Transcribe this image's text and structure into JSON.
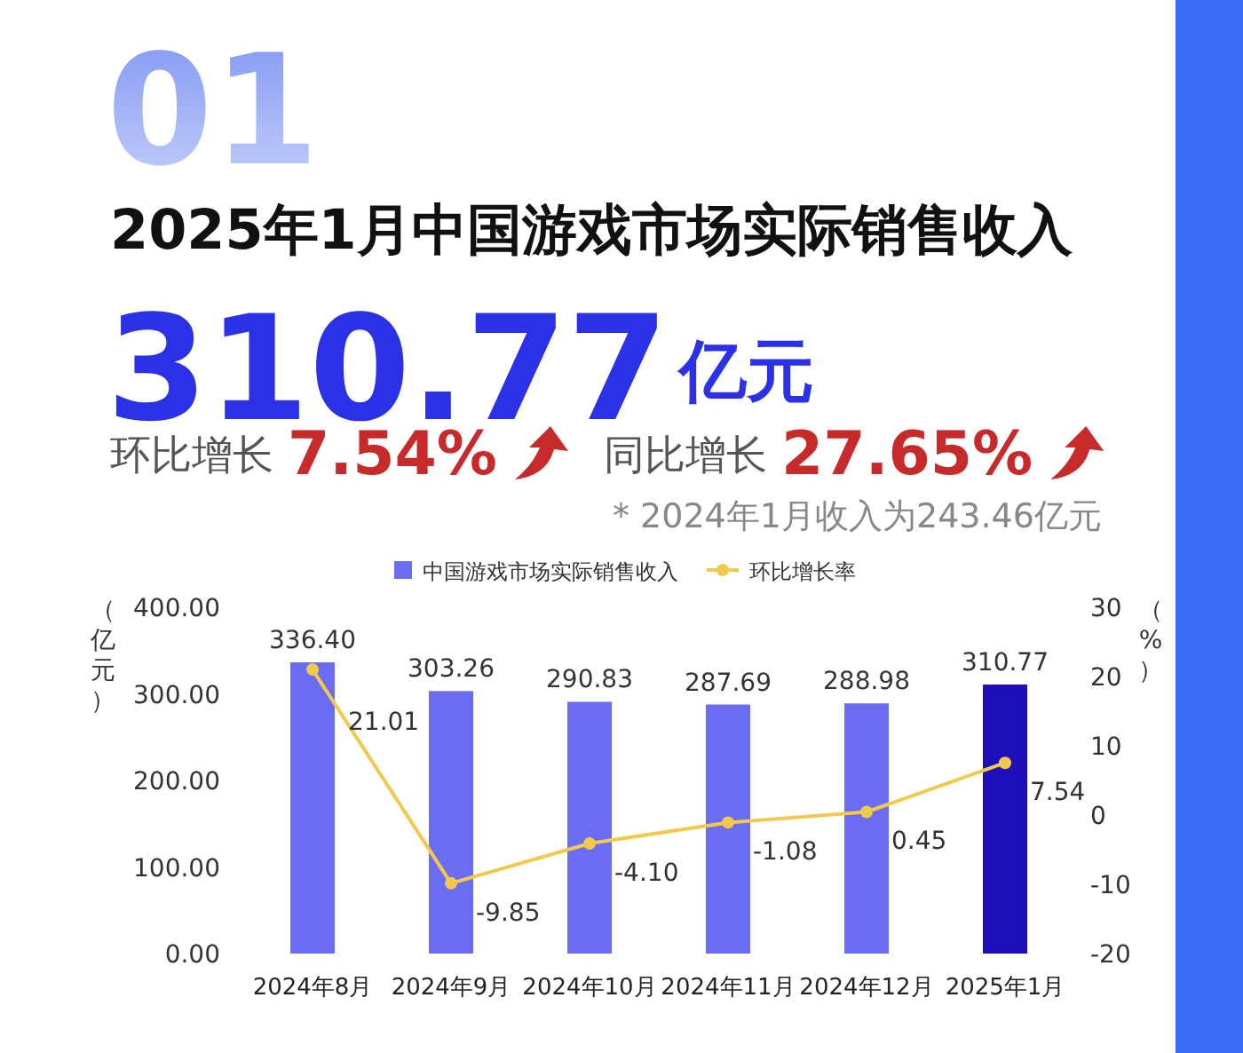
{
  "chart_data": {
    "type": "bar",
    "title": "2025年1月中国游戏市场实际销售收入",
    "annotations": [
      "01",
      "310.77",
      "亿元",
      "环比增长",
      "7.54%",
      "同比增长",
      "27.65%",
      "* 2024年1月收入为243.46亿元"
    ],
    "categories": [
      "2024年8月",
      "2024年9月",
      "2024年10月",
      "2024年11月",
      "2024年12月",
      "2025年1月"
    ],
    "series": [
      {
        "name": "中国游戏市场实际销售收入",
        "type": "bar",
        "color": "#6a6cf2",
        "colors": [
          "#6a6cf2",
          "#6a6cf2",
          "#6a6cf2",
          "#6a6cf2",
          "#6a6cf2",
          "#1f0fb8"
        ],
        "values": [
          336.4,
          303.26,
          290.83,
          287.69,
          288.98,
          310.77
        ],
        "value_labels": [
          "336.40",
          "303.26",
          "290.83",
          "287.69",
          "288.98",
          "310.77"
        ]
      },
      {
        "name": "环比增长率",
        "type": "line",
        "axis": "y2",
        "color": "#f2c94c",
        "marker": "circle",
        "values": [
          21.01,
          -9.85,
          -4.1,
          -1.08,
          0.45,
          7.54
        ],
        "value_labels": [
          "21.01",
          "-9.85",
          "-4.10",
          "-1.08",
          "0.45",
          "7.54"
        ]
      }
    ],
    "ylabel": "（亿元）",
    "y2label": "（%）",
    "ylim": [
      0,
      400
    ],
    "yticks": [
      {
        "value": 0,
        "label": "0.00"
      },
      {
        "value": 100,
        "label": "100.00"
      },
      {
        "value": 200,
        "label": "200.00"
      },
      {
        "value": 300,
        "label": "300.00"
      },
      {
        "value": 400,
        "label": "400.00"
      }
    ],
    "y2lim": [
      -20,
      30
    ],
    "y2ticks": [
      -20,
      -10,
      0,
      10,
      20,
      30
    ],
    "legend": "top"
  }
}
